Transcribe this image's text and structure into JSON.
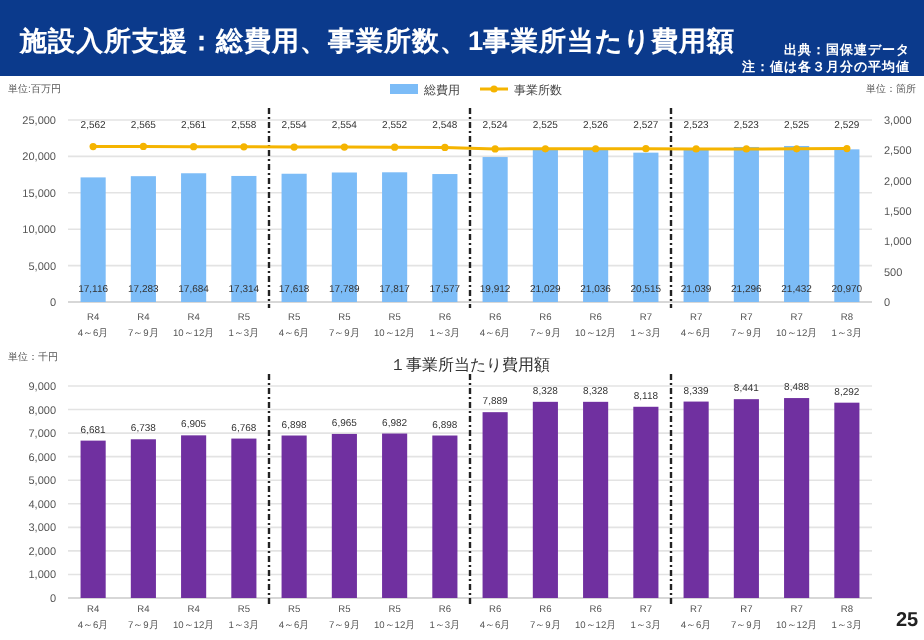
{
  "chart_data": [
    {
      "type": "bar",
      "title": "施設入所支援：総費用、事業所数、1事業所当たり費用額",
      "ylabel": "単位:百万円",
      "y2label": "単位：箇所",
      "annotations": [
        "出典：国保連データ",
        "注：値は各３月分の平均値",
        "25"
      ],
      "categories": [
        "R4\n4～6月",
        "R4\n7～9月",
        "R4\n10～12月",
        "R5\n1～3月",
        "R5\n4～6月",
        "R5\n7～9月",
        "R5\n10～12月",
        "R6\n1～3月",
        "R6\n4～6月",
        "R6\n7～9月",
        "R6\n10～12月",
        "R7\n1～3月",
        "R7\n4～6月",
        "R7\n7～9月",
        "R7\n10～12月",
        "R8\n1～3月"
      ],
      "series": [
        {
          "name": "総費用",
          "color": "#7cbcf7",
          "values": [
            17116,
            17283,
            17684,
            17314,
            17618,
            17789,
            17817,
            17577,
            19912,
            21029,
            21036,
            20515,
            21039,
            21296,
            21432,
            20970
          ],
          "value_labels": [
            "17,116",
            "17,283",
            "17,684",
            "17,314",
            "17,618",
            "17,789",
            "17,817",
            "17,577",
            "19,912",
            "21,029",
            "21,036",
            "20,515",
            "21,039",
            "21,296",
            "21,432",
            "20,970"
          ]
        },
        {
          "name": "事業所数",
          "type": "line",
          "axis": "y2",
          "color": "#f5b400",
          "values": [
            2562,
            2565,
            2561,
            2558,
            2554,
            2554,
            2552,
            2548,
            2524,
            2525,
            2526,
            2527,
            2523,
            2523,
            2525,
            2529
          ],
          "value_labels": [
            "2,562",
            "2,565",
            "2,561",
            "2,558",
            "2,554",
            "2,554",
            "2,552",
            "2,548",
            "2,524",
            "2,525",
            "2,526",
            "2,527",
            "2,523",
            "2,523",
            "2,525",
            "2,529"
          ]
        }
      ],
      "ylim": [
        0,
        25000
      ],
      "yticks": [
        {
          "value": 0,
          "label": "0"
        },
        {
          "value": 5000,
          "label": "5,000"
        },
        {
          "value": 10000,
          "label": "10,000"
        },
        {
          "value": 15000,
          "label": "15,000"
        },
        {
          "value": 20000,
          "label": "20,000"
        },
        {
          "value": 25000,
          "label": "25,000"
        }
      ],
      "y2lim": [
        0,
        3000
      ],
      "y2ticks": [
        {
          "value": 0,
          "label": "0"
        },
        {
          "value": 500,
          "label": "500"
        },
        {
          "value": 1000,
          "label": "1,000"
        },
        {
          "value": 1500,
          "label": "1,500"
        },
        {
          "value": 2000,
          "label": "2,000"
        },
        {
          "value": 2500,
          "label": "2,500"
        },
        {
          "value": 3000,
          "label": "3,000"
        }
      ],
      "marker": "circle",
      "grid": "y",
      "legend": "top"
    },
    {
      "type": "bar",
      "title": "１事業所当たり費用額",
      "ylabel": "単位：千円",
      "categories": [
        "R4\n4～6月",
        "R4\n7～9月",
        "R4\n10～12月",
        "R5\n1～3月",
        "R5\n4～6月",
        "R5\n7～9月",
        "R5\n10～12月",
        "R6\n1～3月",
        "R6\n4～6月",
        "R6\n7～9月",
        "R6\n10～12月",
        "R7\n1～3月",
        "R7\n4～6月",
        "R7\n7～9月",
        "R7\n10～12月",
        "R8\n1～3月"
      ],
      "series": [
        {
          "color": "#7030a0",
          "values": [
            6681,
            6738,
            6905,
            6768,
            6898,
            6965,
            6982,
            6898,
            7889,
            8328,
            8328,
            8118,
            8339,
            8441,
            8488,
            8292
          ],
          "value_labels": [
            "6,681",
            "6,738",
            "6,905",
            "6,768",
            "6,898",
            "6,965",
            "6,982",
            "6,898",
            "7,889",
            "8,328",
            "8,328",
            "8,118",
            "8,339",
            "8,441",
            "8,488",
            "8,292"
          ]
        }
      ],
      "ylim": [
        0,
        9000
      ],
      "yticks": [
        {
          "value": 0,
          "label": "0"
        },
        {
          "value": 1000,
          "label": "1,000"
        },
        {
          "value": 2000,
          "label": "2,000"
        },
        {
          "value": 3000,
          "label": "3,000"
        },
        {
          "value": 4000,
          "label": "4,000"
        },
        {
          "value": 5000,
          "label": "5,000"
        },
        {
          "value": 6000,
          "label": "6,000"
        },
        {
          "value": 7000,
          "label": "7,000"
        },
        {
          "value": 8000,
          "label": "8,000"
        },
        {
          "value": 9000,
          "label": "9,000"
        }
      ],
      "grid": "y"
    }
  ]
}
